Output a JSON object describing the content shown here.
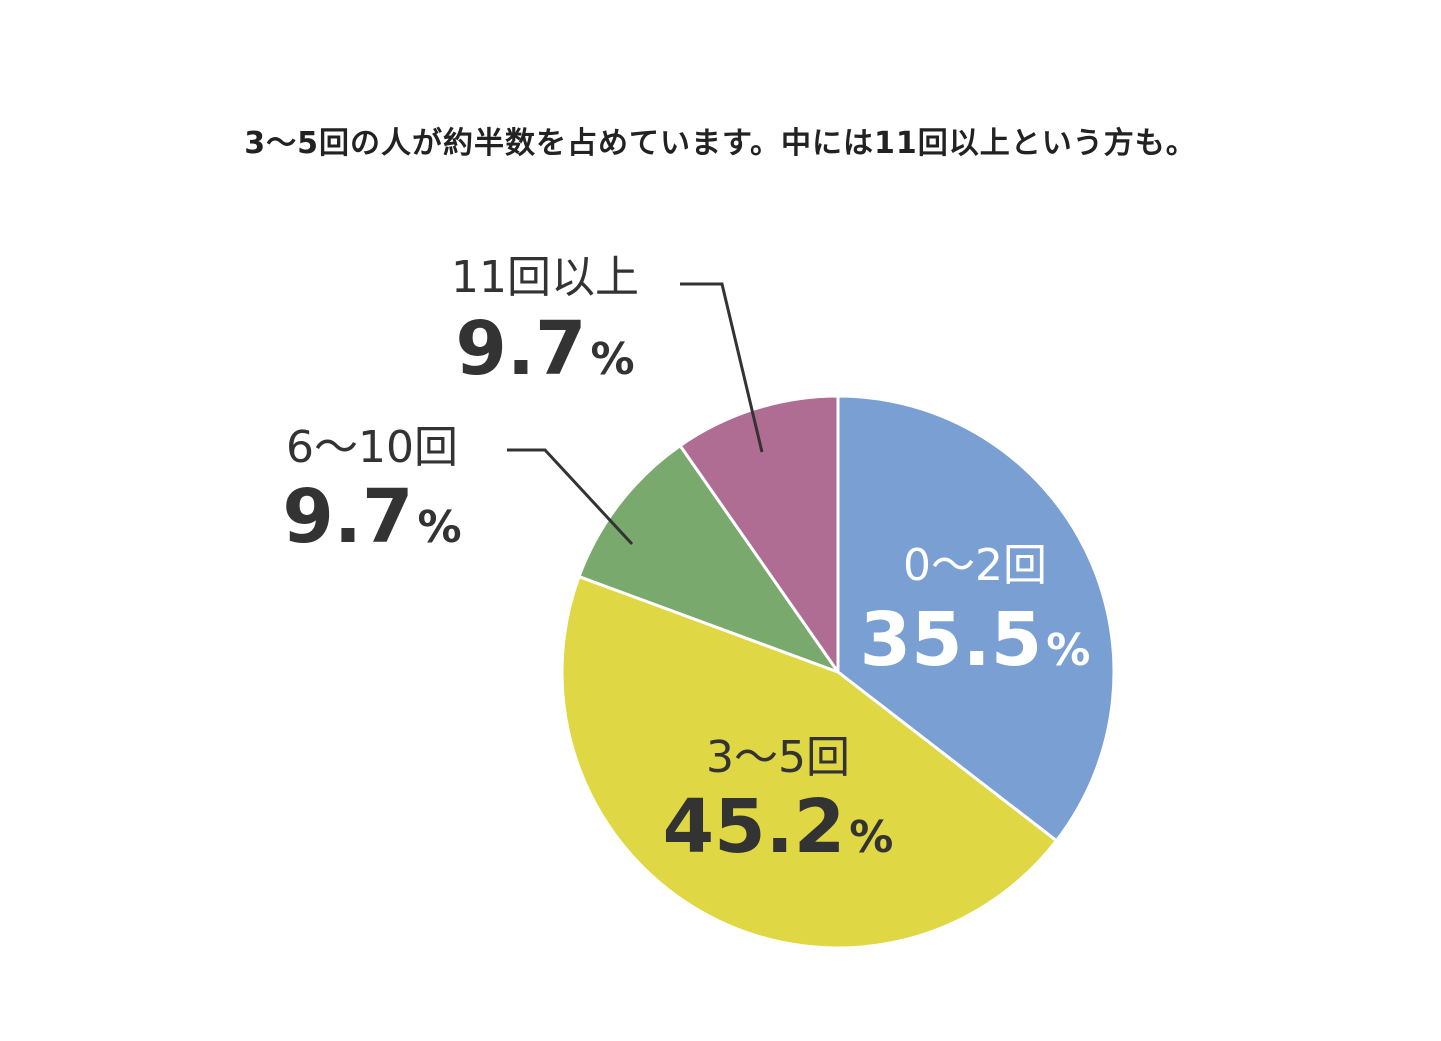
{
  "title": "3〜5回の人が約半数を占めています。中には11回以上という方も。",
  "chart_data": {
    "type": "pie",
    "title": "3〜5回の人が約半数を占めています。中には11回以上という方も。",
    "unit": "%",
    "slices": [
      {
        "label": "0〜2回",
        "value": 35.5,
        "display": "35.5",
        "color": "#7a9fd3",
        "text_color": "#ffffff"
      },
      {
        "label": "3〜5回",
        "value": 45.2,
        "display": "45.2",
        "color": "#dfd744",
        "text_color": "#333333"
      },
      {
        "label": "6〜10回",
        "value": 9.7,
        "display": "9.7",
        "color": "#7aa96d",
        "text_color": "#333333"
      },
      {
        "label": "11回以上",
        "value": 9.7,
        "display": "9.7",
        "color": "#b06d93",
        "text_color": "#333333"
      }
    ],
    "start": "12 o'clock",
    "direction": "clockwise"
  }
}
